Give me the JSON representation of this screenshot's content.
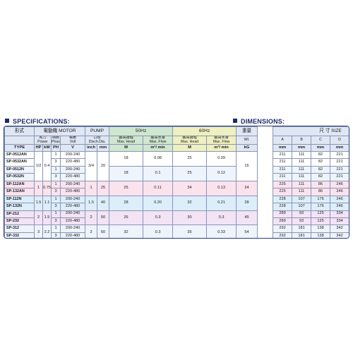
{
  "spec_heading": "SPECIFICATIONS:",
  "dim_heading": "DIMENSIONS:",
  "header": {
    "type_cn": "形式",
    "motor": "電動機 MOTOR",
    "pump": "PUMP",
    "hz50": "50Hz",
    "hz60": "60Hz",
    "weight_cn": "重量",
    "size": "尺 寸 SIZE",
    "power_cn": "馬力",
    "power_en": "Power",
    "phase_cn": "相數",
    "phase_en": "Phase",
    "volt_cn": "電壓",
    "volt_en": "Volt",
    "disch_cn": "口徑",
    "disch_en": "Disch.Dia.",
    "head_cn": "最高揚程",
    "head_en": "Max. Head",
    "flow_cn": "最高水量",
    "flow_en": "Max. Flow",
    "wt": "Wt.",
    "type": "TYPE",
    "hp": "HP",
    "kw": "kW",
    "ph": "PH",
    "v": "V",
    "inch": "inch",
    "mm": "mm",
    "m": "M",
    "flow_unit": "m³/ min",
    "kg": "kG",
    "dim_cols": [
      "A",
      "B",
      "C",
      "D",
      "E",
      "F"
    ],
    "dim_unit": "mm"
  },
  "rows": [
    {
      "type": "SP-0512AN",
      "ph": "1",
      "v": "200-240",
      "dims": [
        "211",
        "111",
        "82",
        "221",
        "305",
        "175"
      ]
    },
    {
      "type": "SP-0532AN",
      "ph": "3",
      "v": "220-480",
      "dims": [
        "211",
        "111",
        "82",
        "221",
        "305",
        "175"
      ]
    },
    {
      "type": "SP-0512N",
      "ph": "1",
      "v": "200-240",
      "dims": [
        "211",
        "111",
        "82",
        "221",
        "305",
        "175"
      ]
    },
    {
      "type": "SP-0532N",
      "ph": "3",
      "v": "220-480",
      "dims": [
        "211",
        "111",
        "82",
        "221",
        "305",
        "175"
      ]
    },
    {
      "type": "SP-112AN",
      "ph": "1",
      "v": "200-240",
      "dims": [
        "225",
        "111",
        "86",
        "246",
        "342",
        "175"
      ]
    },
    {
      "type": "SP-132AN",
      "ph": "3",
      "v": "220-480",
      "dims": [
        "225",
        "111",
        "86",
        "246",
        "342",
        "175"
      ]
    },
    {
      "type": "SP-112N",
      "ph": "1",
      "v": "200-240",
      "dims": [
        "228",
        "107",
        "176",
        "246",
        "373",
        "200"
      ]
    },
    {
      "type": "SP-132N",
      "ph": "3",
      "v": "220-480",
      "dims": [
        "228",
        "107",
        "176",
        "246",
        "393",
        "200"
      ]
    },
    {
      "type": "SP-212",
      "ph": "1",
      "v": "200-240",
      "dims": [
        "289",
        "93",
        "125",
        "334",
        "445",
        ""
      ]
    },
    {
      "type": "SP-232",
      "ph": "3",
      "v": "220-480",
      "dims": [
        "289",
        "93",
        "125",
        "334",
        "445",
        ""
      ]
    },
    {
      "type": "SP-312",
      "ph": "1",
      "v": "200-240",
      "dims": [
        "292",
        "181",
        "138",
        "342",
        "456",
        ""
      ]
    },
    {
      "type": "SP-332",
      "ph": "3",
      "v": "220-480",
      "dims": [
        "292",
        "181",
        "138",
        "342",
        "456",
        ""
      ]
    }
  ],
  "groups": [
    {
      "hp": "1/2",
      "kw": "0.4",
      "inch": "3/4",
      "mm": "20",
      "head50": "18",
      "flow50": "0.08",
      "head60": "25",
      "flow60": "0.09",
      "wt": "16"
    },
    {
      "hp": "",
      "kw": "",
      "inch": "",
      "mm": "",
      "head50": "",
      "flow50": "",
      "head60": "",
      "flow60": "",
      "wt": ""
    },
    {
      "hp": "1",
      "kw": "0.75",
      "inch": "1",
      "mm": "25",
      "head50": "25",
      "flow50": "0.11",
      "head60": "34",
      "flow60": "0.13",
      "wt": "24"
    },
    {
      "hp": "1.5",
      "kw": "1.1",
      "inch": "1.5",
      "mm": "40",
      "head50": "28",
      "flow50": "0.20",
      "head60": "32",
      "flow60": "0.21",
      "wt": "28"
    },
    {
      "hp": "2",
      "kw": "1.5",
      "inch": "2",
      "mm": "50",
      "head50": "26",
      "flow50": "0.3",
      "head60": "30",
      "flow60": "0.3",
      "wt": "45"
    },
    {
      "hp": "3",
      "kw": "2.2",
      "inch": "2",
      "mm": "50",
      "head50": "32",
      "flow50": "0.3",
      "head60": "35",
      "flow60": "0.33",
      "wt": "54"
    }
  ],
  "sub_values": {
    "g1": {
      "head50": "18",
      "flow50": "0.1",
      "head60": "25",
      "flow60": "0.12"
    }
  }
}
